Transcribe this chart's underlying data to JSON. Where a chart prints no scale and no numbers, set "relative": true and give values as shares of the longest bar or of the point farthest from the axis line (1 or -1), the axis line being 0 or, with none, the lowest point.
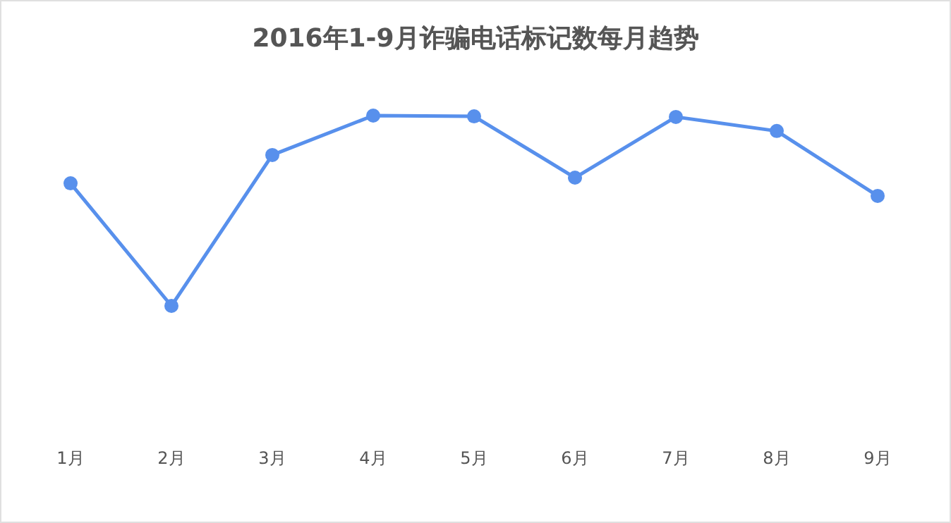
{
  "chart_data": {
    "type": "line",
    "title": "2016年1-9月诈骗电话标记数每月趋势",
    "relative": true,
    "categories": [
      "1月",
      "2月",
      "3月",
      "4月",
      "5月",
      "6月",
      "7月",
      "8月",
      "9月"
    ],
    "series": [
      {
        "color": "#5890ec",
        "values": [
          0.644,
          0,
          0.793,
          1,
          0.996,
          0.674,
          0.993,
          0.919,
          0.578
        ]
      }
    ],
    "marker": "circle",
    "grid": false,
    "legend": false
  }
}
